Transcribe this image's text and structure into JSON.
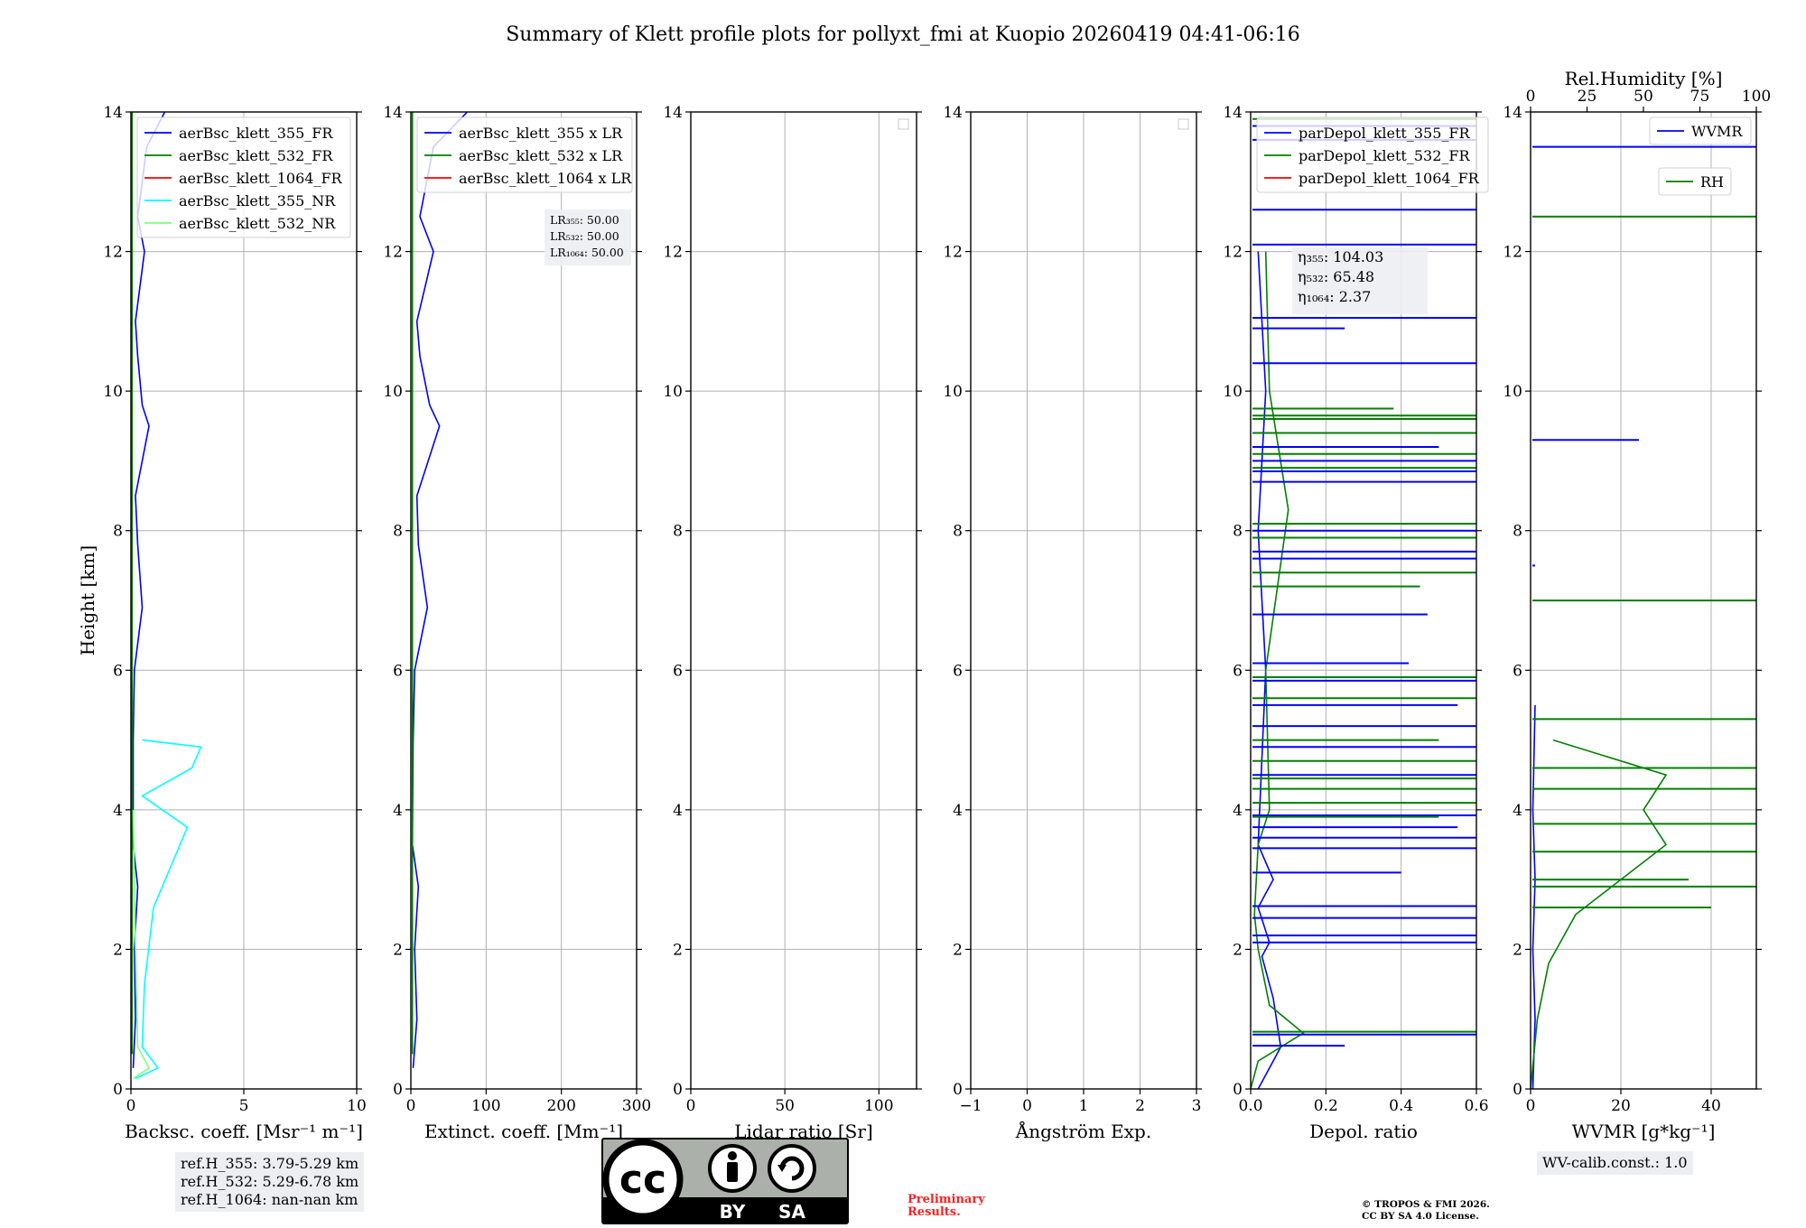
{
  "title": "Summary of Klett profile plots for pollyxt_fmi at Kuopio 20260419 04:41-06:16",
  "colors": {
    "c355": "#0000ff",
    "c532": "#008000",
    "c1064": "#ff0000",
    "c355nr": "#00ffff",
    "c532nr": "#7fff7f"
  },
  "chart_data": [
    {
      "type": "line",
      "id": "bsc",
      "xlabel": "Backsc. coeff. [Msr⁻¹ m⁻¹]",
      "ylabel": "Height [km]",
      "xlim": [
        0,
        10
      ],
      "ylim": [
        0,
        14
      ],
      "xticks": [
        0,
        5,
        10
      ],
      "yticks": [
        0,
        2,
        4,
        6,
        8,
        10,
        12,
        14
      ],
      "legend": [
        "aerBsc_klett_355_FR",
        "aerBsc_klett_532_FR",
        "aerBsc_klett_1064_FR",
        "aerBsc_klett_355_NR",
        "aerBsc_klett_532_NR"
      ],
      "series": [
        {
          "name": "aerBsc_klett_355_FR",
          "color": "#0000ff",
          "points": [
            [
              0.1,
              0.3
            ],
            [
              0.2,
              1.0
            ],
            [
              0.15,
              2.0
            ],
            [
              0.3,
              2.9
            ],
            [
              0.1,
              3.5
            ],
            [
              0.1,
              5.0
            ],
            [
              0.15,
              6.0
            ],
            [
              0.5,
              6.9
            ],
            [
              0.3,
              7.8
            ],
            [
              0.2,
              8.5
            ],
            [
              0.8,
              9.5
            ],
            [
              0.5,
              9.8
            ],
            [
              0.3,
              10.5
            ],
            [
              0.2,
              11.0
            ],
            [
              0.6,
              12.0
            ],
            [
              0.3,
              12.5
            ],
            [
              0.7,
              13.5
            ],
            [
              1.5,
              14.0
            ]
          ]
        },
        {
          "name": "aerBsc_klett_532_FR",
          "color": "#008000",
          "points": [
            [
              0.05,
              0.5
            ],
            [
              0.05,
              3.0
            ],
            [
              0.05,
              6.0
            ],
            [
              0.05,
              10.0
            ],
            [
              0.05,
              14.0
            ]
          ]
        },
        {
          "name": "aerBsc_klett_355_NR",
          "color": "#00ffff",
          "points": [
            [
              0.2,
              0.15
            ],
            [
              1.2,
              0.3
            ],
            [
              0.5,
              0.6
            ],
            [
              0.6,
              1.5
            ],
            [
              1.0,
              2.6
            ],
            [
              2.5,
              3.75
            ],
            [
              0.5,
              4.2
            ],
            [
              2.7,
              4.6
            ],
            [
              3.1,
              4.9
            ],
            [
              0.5,
              5.0
            ]
          ]
        },
        {
          "name": "aerBsc_klett_532_NR",
          "color": "#7fff7f",
          "points": [
            [
              0.1,
              0.15
            ],
            [
              0.8,
              0.3
            ],
            [
              0.3,
              0.6
            ],
            [
              0.2,
              2.0
            ],
            [
              0.1,
              4.0
            ]
          ]
        }
      ]
    },
    {
      "type": "line",
      "id": "ext",
      "xlabel": "Extinct. coeff. [Mm⁻¹]",
      "xlim": [
        0,
        300
      ],
      "ylim": [
        0,
        14
      ],
      "xticks": [
        0,
        100,
        200,
        300
      ],
      "yticks": [
        0,
        2,
        4,
        6,
        8,
        10,
        12,
        14
      ],
      "legend": [
        "aerBsc_klett_355 x LR",
        "aerBsc_klett_532 x LR",
        "aerBsc_klett_1064 x LR"
      ],
      "annotation": [
        "LR₃₅₅: 50.00",
        "LR₅₃₂: 50.00",
        "LR₁₀₆₄: 50.00"
      ],
      "series": [
        {
          "name": "aerBsc_klett_355 x LR",
          "color": "#0000ff",
          "points": [
            [
              3,
              0.3
            ],
            [
              8,
              1.0
            ],
            [
              5,
              2.0
            ],
            [
              10,
              2.9
            ],
            [
              2,
              3.5
            ],
            [
              3,
              5.0
            ],
            [
              5,
              6.0
            ],
            [
              22,
              6.9
            ],
            [
              10,
              7.8
            ],
            [
              8,
              8.5
            ],
            [
              38,
              9.5
            ],
            [
              25,
              9.8
            ],
            [
              12,
              10.5
            ],
            [
              8,
              11.0
            ],
            [
              30,
              12.0
            ],
            [
              12,
              12.5
            ],
            [
              30,
              13.5
            ],
            [
              75,
              14.0
            ]
          ]
        },
        {
          "name": "aerBsc_klett_532 x LR",
          "color": "#008000",
          "points": [
            [
              2,
              0.5
            ],
            [
              2,
              6.0
            ],
            [
              2,
              14.0
            ]
          ]
        }
      ]
    },
    {
      "type": "line",
      "id": "lr",
      "xlabel": "Lidar ratio [Sr]",
      "xlim": [
        0,
        120
      ],
      "ylim": [
        0,
        14
      ],
      "xticks": [
        0,
        50,
        100
      ],
      "yticks": [
        0,
        2,
        4,
        6,
        8,
        10,
        12,
        14
      ],
      "series": []
    },
    {
      "type": "line",
      "id": "ang",
      "xlabel": "Ångström Exp.",
      "xlim": [
        -1,
        3
      ],
      "ylim": [
        0,
        14
      ],
      "xticks": [
        -1,
        0,
        1,
        2,
        3
      ],
      "yticks": [
        0,
        2,
        4,
        6,
        8,
        10,
        12,
        14
      ],
      "series": []
    },
    {
      "type": "line",
      "id": "dep",
      "xlabel": "Depol. ratio",
      "xlim": [
        0,
        0.6
      ],
      "ylim": [
        0,
        14
      ],
      "xticks": [
        0.0,
        0.2,
        0.4,
        0.6
      ],
      "yticks": [
        0,
        2,
        4,
        6,
        8,
        10,
        12,
        14
      ],
      "legend": [
        "parDepol_klett_355_FR",
        "parDepol_klett_532_FR",
        "parDepol_klett_1064_FR"
      ],
      "annotation": [
        "η₃₅₅: 104.03",
        "η₅₃₂: 65.48",
        "η₁₀₆₄: 2.37"
      ],
      "series": [
        {
          "name": "parDepol_klett_355_FR",
          "color": "#0000ff",
          "points": [
            [
              0.02,
              0.0
            ],
            [
              0.08,
              0.6
            ],
            [
              0.06,
              1.3
            ],
            [
              0.03,
              1.9
            ],
            [
              0.05,
              2.1
            ],
            [
              0.02,
              2.6
            ],
            [
              0.06,
              3.0
            ],
            [
              0.02,
              3.5
            ],
            [
              0.04,
              6.0
            ],
            [
              0.02,
              8.0
            ],
            [
              0.04,
              10.0
            ],
            [
              0.02,
              12.0
            ]
          ]
        },
        {
          "name": "parDepol_klett_532_FR",
          "color": "#008000",
          "points": [
            [
              0.0,
              0.0
            ],
            [
              0.02,
              0.4
            ],
            [
              0.14,
              0.8
            ],
            [
              0.05,
              1.2
            ],
            [
              0.02,
              2.0
            ],
            [
              0.01,
              2.5
            ],
            [
              0.02,
              3.5
            ],
            [
              0.05,
              4.0
            ],
            [
              0.04,
              6.0
            ],
            [
              0.1,
              8.3
            ],
            [
              0.05,
              10.0
            ],
            [
              0.04,
              12.0
            ]
          ]
        }
      ],
      "spikes": [
        {
          "color": "#0000ff",
          "values": [
            [
              0.6,
              0.78
            ],
            [
              0.25,
              0.62
            ],
            [
              0.6,
              2.1
            ],
            [
              0.6,
              2.2
            ],
            [
              0.6,
              2.45
            ],
            [
              0.6,
              2.62
            ],
            [
              0.4,
              3.1
            ],
            [
              0.6,
              3.45
            ],
            [
              0.6,
              3.6
            ],
            [
              0.55,
              3.75
            ],
            [
              0.6,
              3.92
            ],
            [
              0.6,
              4.5
            ],
            [
              0.6,
              4.9
            ],
            [
              0.6,
              5.2
            ],
            [
              0.55,
              5.5
            ],
            [
              0.6,
              5.85
            ],
            [
              0.42,
              6.1
            ],
            [
              0.47,
              6.8
            ],
            [
              0.6,
              7.6
            ],
            [
              0.6,
              7.7
            ],
            [
              0.6,
              8.0
            ],
            [
              0.6,
              8.7
            ],
            [
              0.6,
              8.85
            ],
            [
              0.6,
              9.0
            ],
            [
              0.5,
              9.2
            ],
            [
              0.6,
              10.4
            ],
            [
              0.25,
              10.9
            ],
            [
              0.6,
              11.05
            ],
            [
              0.6,
              12.1
            ],
            [
              0.6,
              12.6
            ],
            [
              0.6,
              13.6
            ],
            [
              0.6,
              13.8
            ]
          ]
        },
        {
          "color": "#008000",
          "values": [
            [
              0.6,
              0.82
            ],
            [
              0.5,
              3.9
            ],
            [
              0.6,
              4.1
            ],
            [
              0.6,
              4.3
            ],
            [
              0.6,
              4.45
            ],
            [
              0.6,
              4.7
            ],
            [
              0.5,
              5.0
            ],
            [
              0.6,
              5.6
            ],
            [
              0.6,
              5.9
            ],
            [
              0.45,
              7.2
            ],
            [
              0.6,
              7.4
            ],
            [
              0.6,
              7.9
            ],
            [
              0.6,
              8.1
            ],
            [
              0.6,
              8.9
            ],
            [
              0.6,
              9.1
            ],
            [
              0.6,
              9.4
            ],
            [
              0.6,
              9.6
            ],
            [
              0.6,
              9.65
            ],
            [
              0.38,
              9.75
            ],
            [
              0.6,
              13.9
            ]
          ]
        }
      ]
    },
    {
      "type": "line",
      "id": "wv",
      "xlabel": "WVMR [g*kg⁻¹]",
      "xlabel2": "Rel.Humidity [%]",
      "xlim": [
        0,
        50
      ],
      "xlim2": [
        0,
        100
      ],
      "ylim": [
        0,
        14
      ],
      "xticks": [
        0,
        20,
        40
      ],
      "xticks2": [
        0,
        25,
        50,
        75,
        100
      ],
      "yticks": [
        0,
        2,
        4,
        6,
        8,
        10,
        12,
        14
      ],
      "legend": [
        "WVMR",
        "RH"
      ],
      "annotation": [
        "WV-calib.const.: 1.0"
      ],
      "series": [
        {
          "name": "WVMR",
          "color": "#0000ff",
          "points": [
            [
              0.5,
              0.0
            ],
            [
              1.0,
              1.0
            ],
            [
              0.5,
              2.0
            ],
            [
              1.0,
              3.0
            ],
            [
              0.5,
              4.0
            ],
            [
              1.0,
              5.5
            ]
          ]
        },
        {
          "name": "RH",
          "color": "#008000",
          "points": [
            [
              0,
              0.0
            ],
            [
              3,
              1.0
            ],
            [
              8,
              1.8
            ],
            [
              20,
              2.5
            ],
            [
              40,
              3.0
            ],
            [
              60,
              3.5
            ],
            [
              50,
              4.0
            ],
            [
              60,
              4.5
            ],
            [
              10,
              5.0
            ]
          ]
        }
      ],
      "spikes": [
        {
          "color": "#0000ff",
          "values": [
            [
              100,
              13.5
            ],
            [
              48,
              9.3
            ],
            [
              2,
              7.5
            ],
            [
              1,
              4.2
            ]
          ]
        },
        {
          "color": "#008000",
          "values": [
            [
              100,
              12.5
            ],
            [
              100,
              7.0
            ],
            [
              100,
              4.6
            ],
            [
              100,
              3.8
            ],
            [
              100,
              3.4
            ],
            [
              100,
              2.9
            ],
            [
              70,
              3.0
            ],
            [
              80,
              2.6
            ],
            [
              100,
              4.3
            ],
            [
              100,
              5.3
            ]
          ]
        }
      ]
    }
  ],
  "refH": [
    "ref.H_355: 3.79-5.29 km",
    "ref.H_532: 5.29-6.78 km",
    "ref.H_1064: nan-nan km"
  ],
  "license_badge": {
    "top": "cc",
    "left_label": "BY",
    "right_label": "SA"
  },
  "preliminary": [
    "Preliminary",
    "Results."
  ],
  "copyright": [
    "© TROPOS & FMI 2026.",
    "CC BY SA 4.0 License."
  ]
}
